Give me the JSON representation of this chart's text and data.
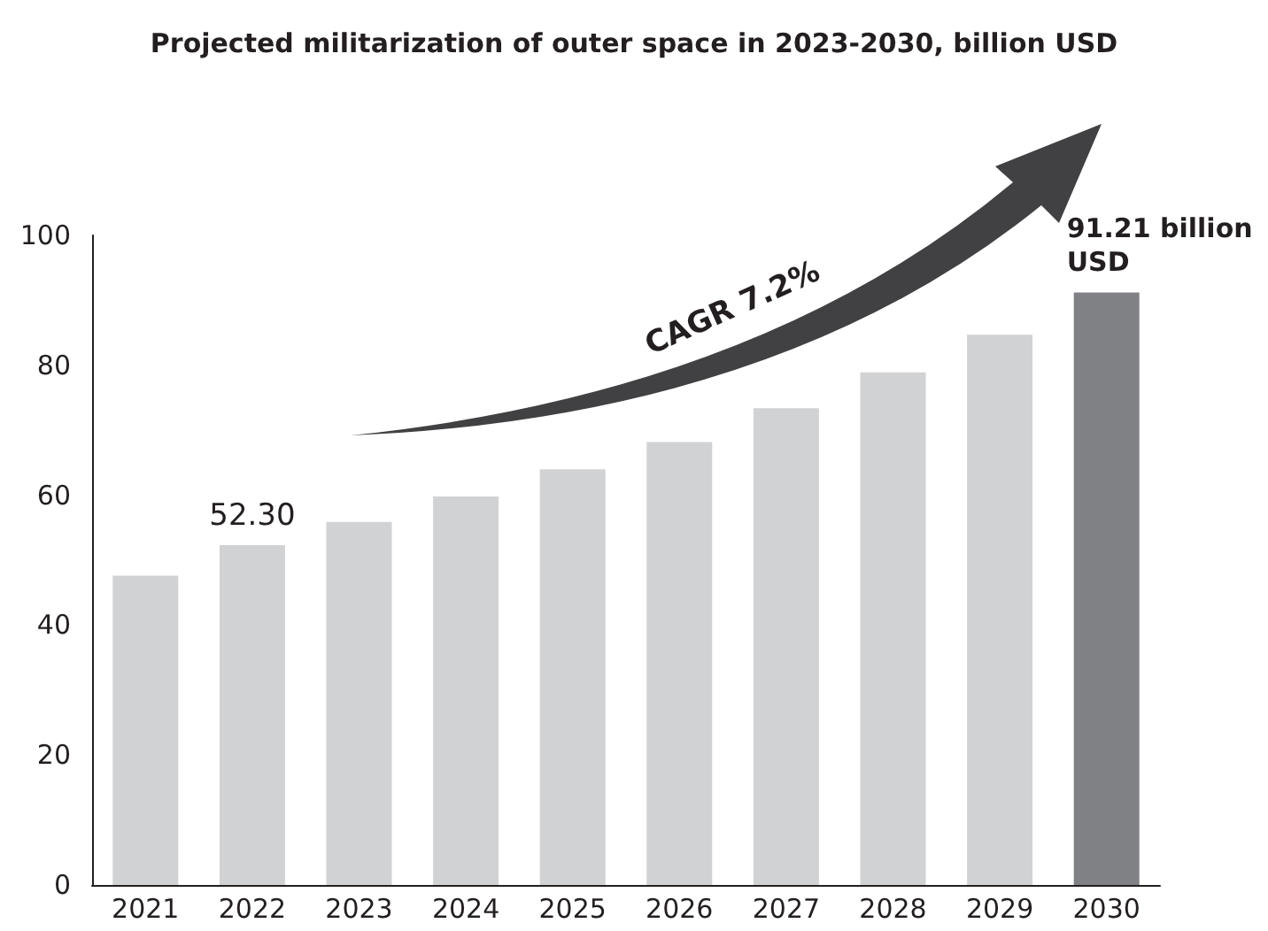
{
  "chart_data": {
    "type": "bar",
    "title": "Projected militarization of outer space in 2023-2030, billion USD",
    "categories": [
      "2021",
      "2022",
      "2023",
      "2024",
      "2025",
      "2026",
      "2027",
      "2028",
      "2029",
      "2030"
    ],
    "values": [
      47.6,
      52.3,
      55.9,
      59.8,
      64,
      68.2,
      73.4,
      78.9,
      84.7,
      91.21
    ],
    "colors": [
      "#d1d2d4",
      "#d1d2d4",
      "#d1d2d4",
      "#d1d2d4",
      "#d1d2d4",
      "#d1d2d4",
      "#d1d2d4",
      "#d1d2d4",
      "#d1d2d4",
      "#808184"
    ],
    "value_labels": [
      null,
      "52.30",
      null,
      null,
      null,
      null,
      null,
      null,
      null,
      "91.21 billion USD"
    ],
    "annotations": [
      "CAGR 7.2%"
    ],
    "ylim": [
      0,
      100
    ],
    "yticks": [
      0,
      20,
      40,
      60,
      80,
      100
    ],
    "grid": false
  }
}
